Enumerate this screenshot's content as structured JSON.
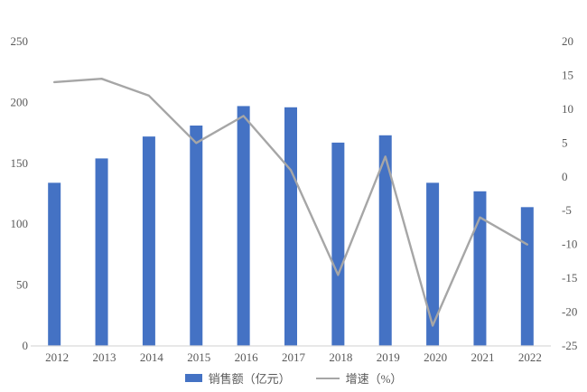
{
  "chart_data": {
    "type": "bar",
    "subtype": "combo-bar-line",
    "title": "",
    "xlabel": "",
    "ylabel": "",
    "categories": [
      "2012",
      "2013",
      "2014",
      "2015",
      "2016",
      "2017",
      "2018",
      "2019",
      "2020",
      "2021",
      "2022"
    ],
    "series": [
      {
        "name": "销售额（亿元）",
        "type": "bar",
        "axis": "left",
        "color": "#4472C4",
        "values": [
          134,
          154,
          172,
          181,
          197,
          196,
          167,
          173,
          134,
          127,
          114
        ]
      },
      {
        "name": "增速（%）",
        "type": "line",
        "axis": "right",
        "color": "#A6A6A6",
        "values": [
          14,
          14.5,
          12,
          5,
          9,
          1,
          -14.5,
          3,
          -22,
          -6,
          -10
        ]
      }
    ],
    "left_axis": {
      "min": 0,
      "max": 250,
      "step": 50,
      "tick_labels": [
        "250",
        "200",
        "150",
        "100",
        "50",
        "0"
      ]
    },
    "right_axis": {
      "min": -25,
      "max": 20,
      "step": 5,
      "tick_labels": [
        "20",
        "15",
        "10",
        "5",
        "0",
        "-5",
        "-10",
        "-15",
        "-20",
        "-25"
      ]
    },
    "legend_position": "bottom",
    "grid": false,
    "colors": {
      "background": "#ffffff",
      "axis_line": "#D9D9D9",
      "labels": "#595959"
    }
  }
}
